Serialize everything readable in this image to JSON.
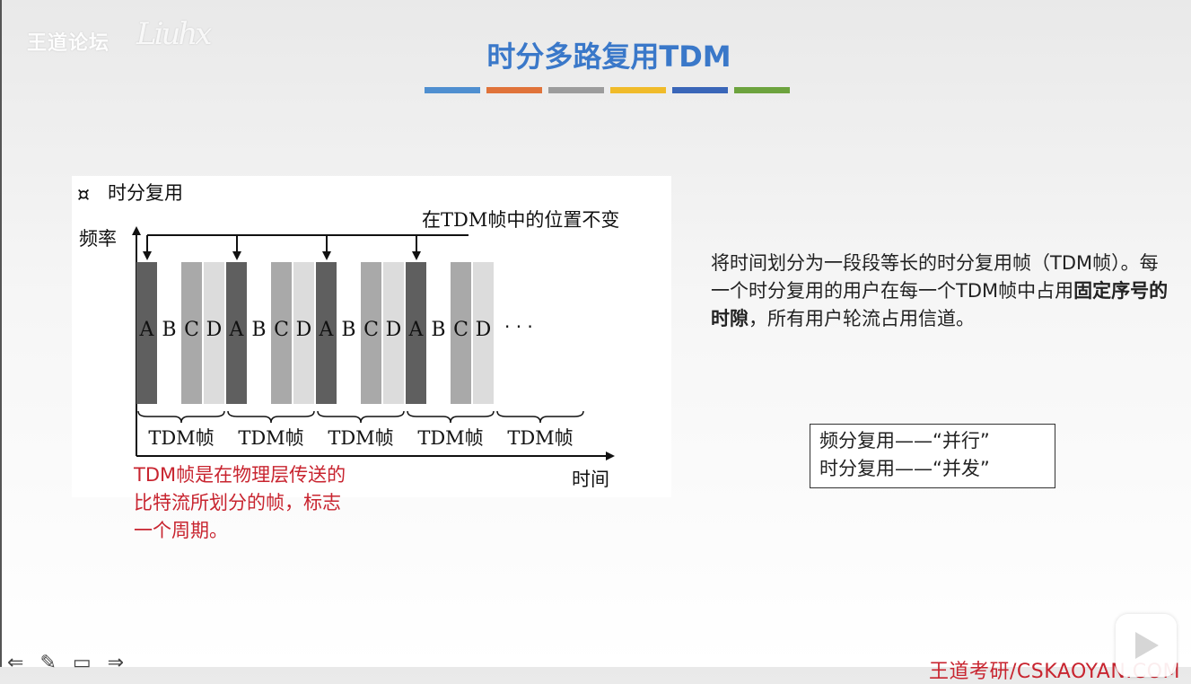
{
  "watermark": {
    "logo_text": "王道论坛",
    "signature": "Liuhx"
  },
  "slide": {
    "title": "时分多路复用TDM",
    "title_bar_colors": [
      "#4f8fd0",
      "#e0733a",
      "#9c9c9c",
      "#f0bb2a",
      "#3a66b8",
      "#6da33e"
    ]
  },
  "figure": {
    "heading": "时分复用",
    "y_axis_label": "频率",
    "x_axis_label": "时间",
    "annotation": "在TDM帧中的位置不变",
    "slot_labels": [
      "A",
      "B",
      "C",
      "D"
    ],
    "frame_label": "TDM帧",
    "frame_count": 5,
    "ellipsis": "· · ·",
    "slot_shades": {
      "A": "#5f5f5f",
      "B": "#ffffff",
      "C": "#a9a9a9",
      "D": "#dcdcdc"
    }
  },
  "caption": "TDM帧是在物理层传送的比特流所划分的帧，标志一个周期。",
  "description": {
    "part1": "将时间划分为一段段等长的时分复用帧（TDM帧）。每一个时分复用的用户在每一个TDM帧中占用",
    "bold": "固定序号的时隙",
    "part2": "，所有用户轮流占用信道。"
  },
  "comparison": {
    "line1": "频分复用——“并行”",
    "line2": "时分复用——“并发”"
  },
  "toolbar": {
    "prev": "⇐",
    "pen": "✎",
    "screen": "▭",
    "next": "⇒"
  },
  "footer": {
    "brand": "王道考研/CSKAOYAN.COM"
  }
}
